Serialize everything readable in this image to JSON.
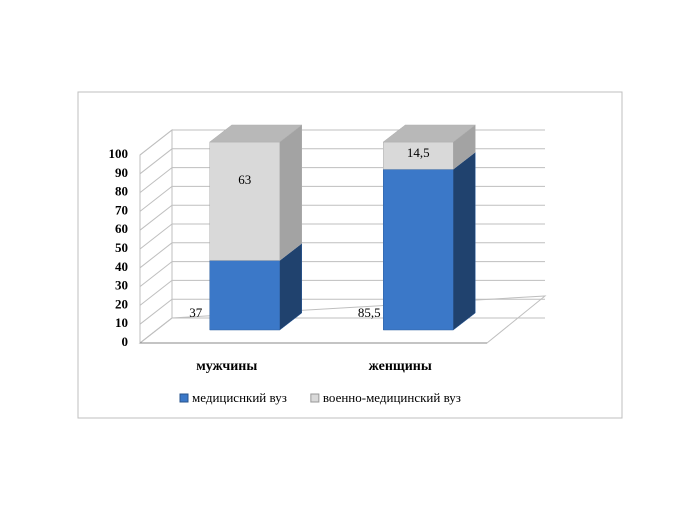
{
  "chart_data": {
    "type": "bar3d_stacked",
    "categories": [
      "мужчины",
      "женщины"
    ],
    "series": [
      {
        "name": "медициснкий вуз",
        "color": "#3b78c8",
        "values": [
          37,
          85.5
        ],
        "value_labels": [
          "37",
          "85,5"
        ]
      },
      {
        "name": "военно-медицинский вуз",
        "color": "#d9d9d9",
        "values": [
          63,
          14.5
        ],
        "value_labels": [
          "63",
          "14,5"
        ]
      }
    ],
    "ylim": [
      0,
      100
    ],
    "yticks": [
      0,
      10,
      20,
      30,
      40,
      50,
      60,
      70,
      80,
      90,
      100
    ],
    "grid": true,
    "legend": "bottom"
  }
}
